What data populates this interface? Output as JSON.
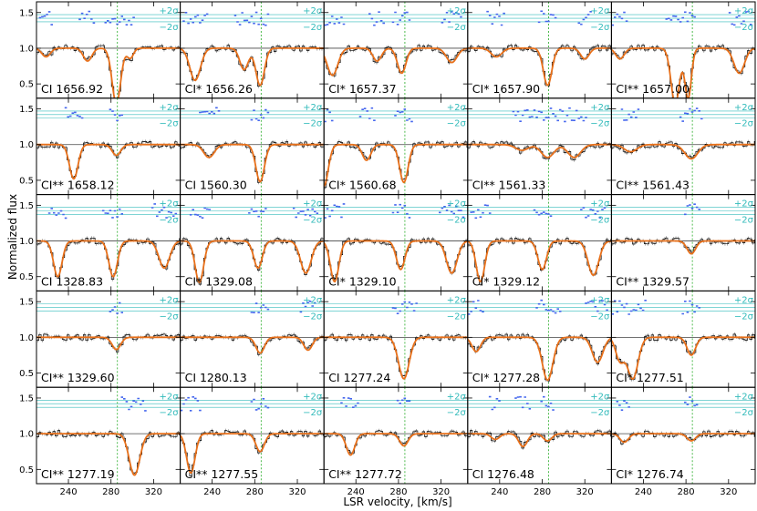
{
  "figure": {
    "ylabel": "Normalized flux",
    "xlabel": "LSR velocity, [km/s]",
    "sigma_plus": "+2σ",
    "sigma_minus": "−2σ"
  },
  "chart_data": {
    "type": "line",
    "grid": false,
    "rows": 5,
    "cols": 5,
    "xlim": [
      210,
      345
    ],
    "ylim": [
      0.3,
      1.65
    ],
    "xticks": [
      240,
      280,
      320
    ],
    "yticks": [
      0.5,
      1.0,
      1.5
    ],
    "continuum": 1.0,
    "component_velocity": 286,
    "colors": {
      "data": "#000000",
      "model": "#e8701a",
      "residual": "#4466ee",
      "sigma_band": "#33bbbb",
      "component": "#22aa22",
      "continuum_line": "#444444"
    },
    "panels": [
      {
        "label": "CI 1656.92",
        "lines": [
          [
            219,
            0.88,
            4
          ],
          [
            258,
            0.82,
            4
          ],
          [
            285,
            0.22,
            4
          ],
          [
            298,
            0.86,
            3
          ]
        ]
      },
      {
        "label": "CI* 1656.26",
        "lines": [
          [
            224,
            0.55,
            5
          ],
          [
            270,
            0.7,
            4
          ],
          [
            285,
            0.48,
            4
          ]
        ]
      },
      {
        "label": "CI* 1657.37",
        "lines": [
          [
            218,
            0.62,
            5
          ],
          [
            260,
            0.82,
            4
          ],
          [
            283,
            0.65,
            4
          ],
          [
            330,
            0.8,
            5
          ]
        ]
      },
      {
        "label": "CI* 1657.90",
        "lines": [
          [
            237,
            0.88,
            5
          ],
          [
            285,
            0.48,
            4
          ],
          [
            320,
            0.85,
            4
          ]
        ]
      },
      {
        "label": "CI** 1657.00",
        "lines": [
          [
            218,
            0.85,
            4
          ],
          [
            270,
            0.22,
            4
          ],
          [
            282,
            0.3,
            3
          ],
          [
            330,
            0.65,
            5
          ]
        ]
      },
      {
        "label": "CI** 1658.12",
        "lines": [
          [
            245,
            0.52,
            4
          ],
          [
            285,
            0.85,
            4
          ]
        ]
      },
      {
        "label": "CI 1560.30",
        "lines": [
          [
            237,
            0.82,
            5
          ],
          [
            285,
            0.48,
            4
          ]
        ]
      },
      {
        "label": "CI* 1560.68",
        "lines": [
          [
            210,
            0.42,
            4
          ],
          [
            250,
            0.78,
            4
          ],
          [
            285,
            0.47,
            4
          ]
        ]
      },
      {
        "label": "CI** 1561.33",
        "lines": [
          [
            261,
            0.92,
            6
          ],
          [
            285,
            0.82,
            6
          ],
          [
            310,
            0.82,
            6
          ]
        ]
      },
      {
        "label": "CI** 1561.43",
        "lines": [
          [
            228,
            0.9,
            6
          ],
          [
            285,
            0.8,
            6
          ]
        ]
      },
      {
        "label": "CI 1328.83",
        "lines": [
          [
            230,
            0.5,
            4
          ],
          [
            282,
            0.5,
            4
          ],
          [
            330,
            0.62,
            5
          ]
        ]
      },
      {
        "label": "CI* 1329.08",
        "lines": [
          [
            228,
            0.42,
            4
          ],
          [
            283,
            0.62,
            4
          ],
          [
            328,
            0.55,
            5
          ]
        ]
      },
      {
        "label": "CI* 1329.10",
        "lines": [
          [
            220,
            0.43,
            4
          ],
          [
            282,
            0.6,
            4
          ],
          [
            330,
            0.55,
            5
          ]
        ]
      },
      {
        "label": "CI* 1329.12",
        "lines": [
          [
            222,
            0.43,
            4
          ],
          [
            280,
            0.6,
            4
          ],
          [
            328,
            0.52,
            5
          ]
        ]
      },
      {
        "label": "CI** 1329.57",
        "lines": [
          [
            285,
            0.82,
            4
          ]
        ]
      },
      {
        "label": "CI** 1329.60",
        "lines": [
          [
            285,
            0.83,
            4
          ]
        ]
      },
      {
        "label": "CI 1280.13",
        "lines": [
          [
            285,
            0.78,
            4
          ],
          [
            330,
            0.82,
            4
          ]
        ]
      },
      {
        "label": "CI 1277.24",
        "lines": [
          [
            285,
            0.42,
            5
          ]
        ]
      },
      {
        "label": "CI* 1277.28",
        "lines": [
          [
            218,
            0.8,
            4
          ],
          [
            285,
            0.4,
            5
          ],
          [
            332,
            0.65,
            5
          ]
        ]
      },
      {
        "label": "CI* 1277.51",
        "lines": [
          [
            218,
            0.68,
            4
          ],
          [
            230,
            0.42,
            5
          ],
          [
            285,
            0.75,
            4
          ]
        ]
      },
      {
        "label": "CI** 1277.19",
        "lines": [
          [
            302,
            0.42,
            5
          ]
        ]
      },
      {
        "label": "CI** 1277.55",
        "lines": [
          [
            220,
            0.45,
            4
          ],
          [
            285,
            0.75,
            4
          ]
        ]
      },
      {
        "label": "CI** 1277.72",
        "lines": [
          [
            235,
            0.7,
            4
          ],
          [
            285,
            0.83,
            4
          ]
        ]
      },
      {
        "label": "CI 1276.48",
        "lines": [
          [
            236,
            0.92,
            4
          ],
          [
            262,
            0.82,
            4
          ],
          [
            285,
            0.9,
            4
          ]
        ]
      },
      {
        "label": "CI* 1276.74",
        "lines": [
          [
            222,
            0.88,
            4
          ],
          [
            285,
            0.9,
            4
          ]
        ]
      }
    ]
  }
}
